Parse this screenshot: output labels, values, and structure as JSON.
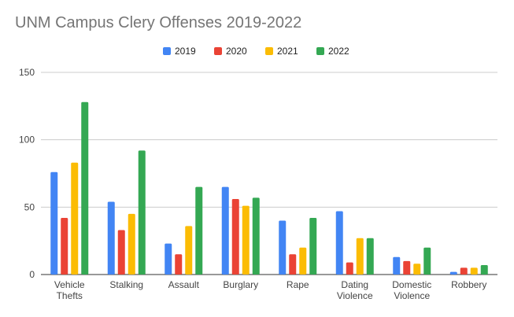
{
  "chart_data": {
    "type": "bar",
    "title": "UNM Campus Clery Offenses 2019-2022",
    "xlabel": "",
    "ylabel": "",
    "ylim": [
      0,
      150
    ],
    "yticks": [
      "0",
      "50",
      "100",
      "150"
    ],
    "grid": true,
    "legend_position": "top",
    "categories": [
      [
        "Vehicle",
        "Thefts"
      ],
      [
        "Stalking"
      ],
      [
        "Assault"
      ],
      [
        "Burglary"
      ],
      [
        "Rape"
      ],
      [
        "Dating",
        "Violence"
      ],
      [
        "Domestic",
        "Violence"
      ],
      [
        "Robbery"
      ]
    ],
    "series": [
      {
        "name": "2019",
        "color": "#4285F4",
        "values": [
          76,
          54,
          23,
          65,
          40,
          47,
          13,
          2
        ]
      },
      {
        "name": "2020",
        "color": "#EA4335",
        "values": [
          42,
          33,
          15,
          56,
          15,
          9,
          10,
          5
        ]
      },
      {
        "name": "2021",
        "color": "#FBBC04",
        "values": [
          83,
          45,
          36,
          51,
          20,
          27,
          8,
          5
        ]
      },
      {
        "name": "2022",
        "color": "#34A853",
        "values": [
          128,
          92,
          65,
          57,
          42,
          27,
          20,
          7
        ]
      }
    ]
  }
}
